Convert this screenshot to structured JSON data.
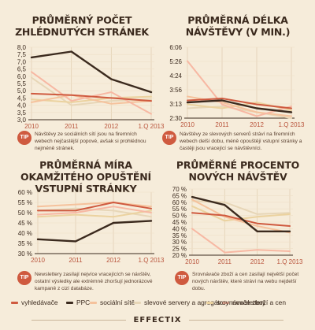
{
  "series_meta": [
    {
      "name": "vyhledávače",
      "color": "#cf5a3f"
    },
    {
      "name": "PPC",
      "color": "#3b2a1e"
    },
    {
      "name": "sociální sítě",
      "color": "#f5c29c"
    },
    {
      "name": "slevové servery a agregátory",
      "color": "#e7d6b7"
    },
    {
      "name": "newslettery",
      "color": "#f7b8a3"
    },
    {
      "name": "srovnávače zboží a cen",
      "color": "#ebd29f"
    }
  ],
  "tip_label": "TIP",
  "brand": "EFFECTIX",
  "chart_data": [
    {
      "type": "line",
      "title": "PRŮMĚRNÝ POČET ZHLÉDNUTÝCH STRÁNEK",
      "categories": [
        "2010",
        "2011",
        "2012",
        "1.Q 2013"
      ],
      "y_ticks": [
        "8,0",
        "7,5",
        "7,0",
        "6,5",
        "6,0",
        "5,5",
        "5,0",
        "4,5",
        "4,0",
        "3,5",
        "3,0"
      ],
      "ylim": [
        3.0,
        8.0
      ],
      "series": [
        {
          "name": "vyhledávače",
          "values": [
            4.8,
            4.7,
            4.5,
            4.3
          ]
        },
        {
          "name": "PPC",
          "values": [
            7.3,
            7.7,
            5.8,
            4.9
          ]
        },
        {
          "name": "sociální sítě",
          "values": [
            4.2,
            4.7,
            4.1,
            4.3
          ]
        },
        {
          "name": "slevové servery a agregátory",
          "values": [
            5.9,
            4.0,
            4.3,
            4.4
          ]
        },
        {
          "name": "newslettery",
          "values": [
            6.3,
            4.3,
            4.9,
            3.4
          ]
        },
        {
          "name": "srovnávače zboží a cen",
          "values": [
            4.4,
            4.2,
            4.5,
            4.6
          ]
        }
      ],
      "tip": "Návštěvy ze sociálních sítí jsou na firemních webech nejčastější popové, avšak si prohlédnou nejméně stránek."
    },
    {
      "type": "line",
      "title": "PRŮMĚRNÁ DÉLKA NÁVŠTĚVY (V MIN.)",
      "categories": [
        "2010",
        "2011",
        "2012",
        "1.Q 2013"
      ],
      "y_ticks": [
        "6:06",
        "5:26",
        "4:24",
        "3:56",
        "3:13",
        "2:30"
      ],
      "ylim": [
        2.5,
        6.1
      ],
      "series": [
        {
          "name": "vyhledávače",
          "values": [
            3.4,
            3.5,
            3.2,
            3.0
          ]
        },
        {
          "name": "PPC",
          "values": [
            3.3,
            3.4,
            3.0,
            2.8
          ]
        },
        {
          "name": "sociální sítě",
          "values": [
            3.6,
            3.3,
            2.8,
            2.6
          ]
        },
        {
          "name": "slevové servery a agregátory",
          "values": [
            3.0,
            3.1,
            2.8,
            2.5
          ]
        },
        {
          "name": "newslettery",
          "values": [
            5.4,
            3.2,
            2.6,
            3.1
          ]
        },
        {
          "name": "srovnávače zboží a cen",
          "values": [
            3.2,
            3.0,
            3.3,
            2.9
          ]
        }
      ],
      "tip": "Návštěvy ze slevových serverů stráví na firemních webech delší dobu, méně opouštějí vstupní stránky a častěji jsou vracející se návštěvníci."
    },
    {
      "type": "line",
      "title": "PRŮMĚRNÁ MÍRA OKAMŽITÉHO OPUŠTĚNÍ VSTUPNÍ STRÁNKY",
      "categories": [
        "2010",
        "2011",
        "2012",
        "1.Q 2013"
      ],
      "y_ticks": [
        "60 %",
        "55 %",
        "50 %",
        "45 %",
        "40 %",
        "35 %",
        "30 %"
      ],
      "ylim": [
        30,
        60
      ],
      "series": [
        {
          "name": "vyhledávače",
          "values": [
            51,
            51,
            55,
            52
          ]
        },
        {
          "name": "PPC",
          "values": [
            37,
            36,
            45,
            46
          ]
        },
        {
          "name": "sociální sítě",
          "values": [
            53,
            54,
            55,
            53
          ]
        },
        {
          "name": "slevové servery a agregátory",
          "values": [
            51,
            52,
            51,
            48
          ]
        },
        {
          "name": "newslettery",
          "values": [
            49,
            50,
            53,
            50
          ]
        },
        {
          "name": "srovnávače zboží a cen",
          "values": [
            48,
            49,
            48,
            51
          ]
        }
      ],
      "tip": "Newslettery zasílají nejvíce vracejících se návštěv, ostatní výsledky ale extrémně zhoršují jednorázové kampaně z cizí databáze."
    },
    {
      "type": "line",
      "title": "PRŮMĚRNÉ PROCENTO NOVÝCH NÁVŠTĚV",
      "categories": [
        "2010",
        "2011",
        "2012",
        "1.Q 2013"
      ],
      "y_ticks": [
        "70 %",
        "65 %",
        "60 %",
        "55 %",
        "50 %",
        "45 %",
        "40 %",
        "35 %",
        "30 %",
        "25 %",
        "20 %"
      ],
      "ylim": [
        20,
        70
      ],
      "series": [
        {
          "name": "vyhledávače",
          "values": [
            52,
            50,
            44,
            42
          ]
        },
        {
          "name": "PPC",
          "values": [
            64,
            58,
            38,
            38
          ]
        },
        {
          "name": "sociální sítě",
          "values": [
            62,
            49,
            42,
            37
          ]
        },
        {
          "name": "slevové servery a agregátory",
          "values": [
            61,
            60,
            51,
            52
          ]
        },
        {
          "name": "newslettery",
          "values": [
            40,
            22,
            24,
            23
          ]
        },
        {
          "name": "srovnávače zboží a cen",
          "values": [
            57,
            46,
            49,
            51
          ]
        }
      ],
      "tip": "Srovnávače zboží a cen zasílají největší počet nových návštěv, které stráví na webu nejdelší dobu."
    }
  ]
}
